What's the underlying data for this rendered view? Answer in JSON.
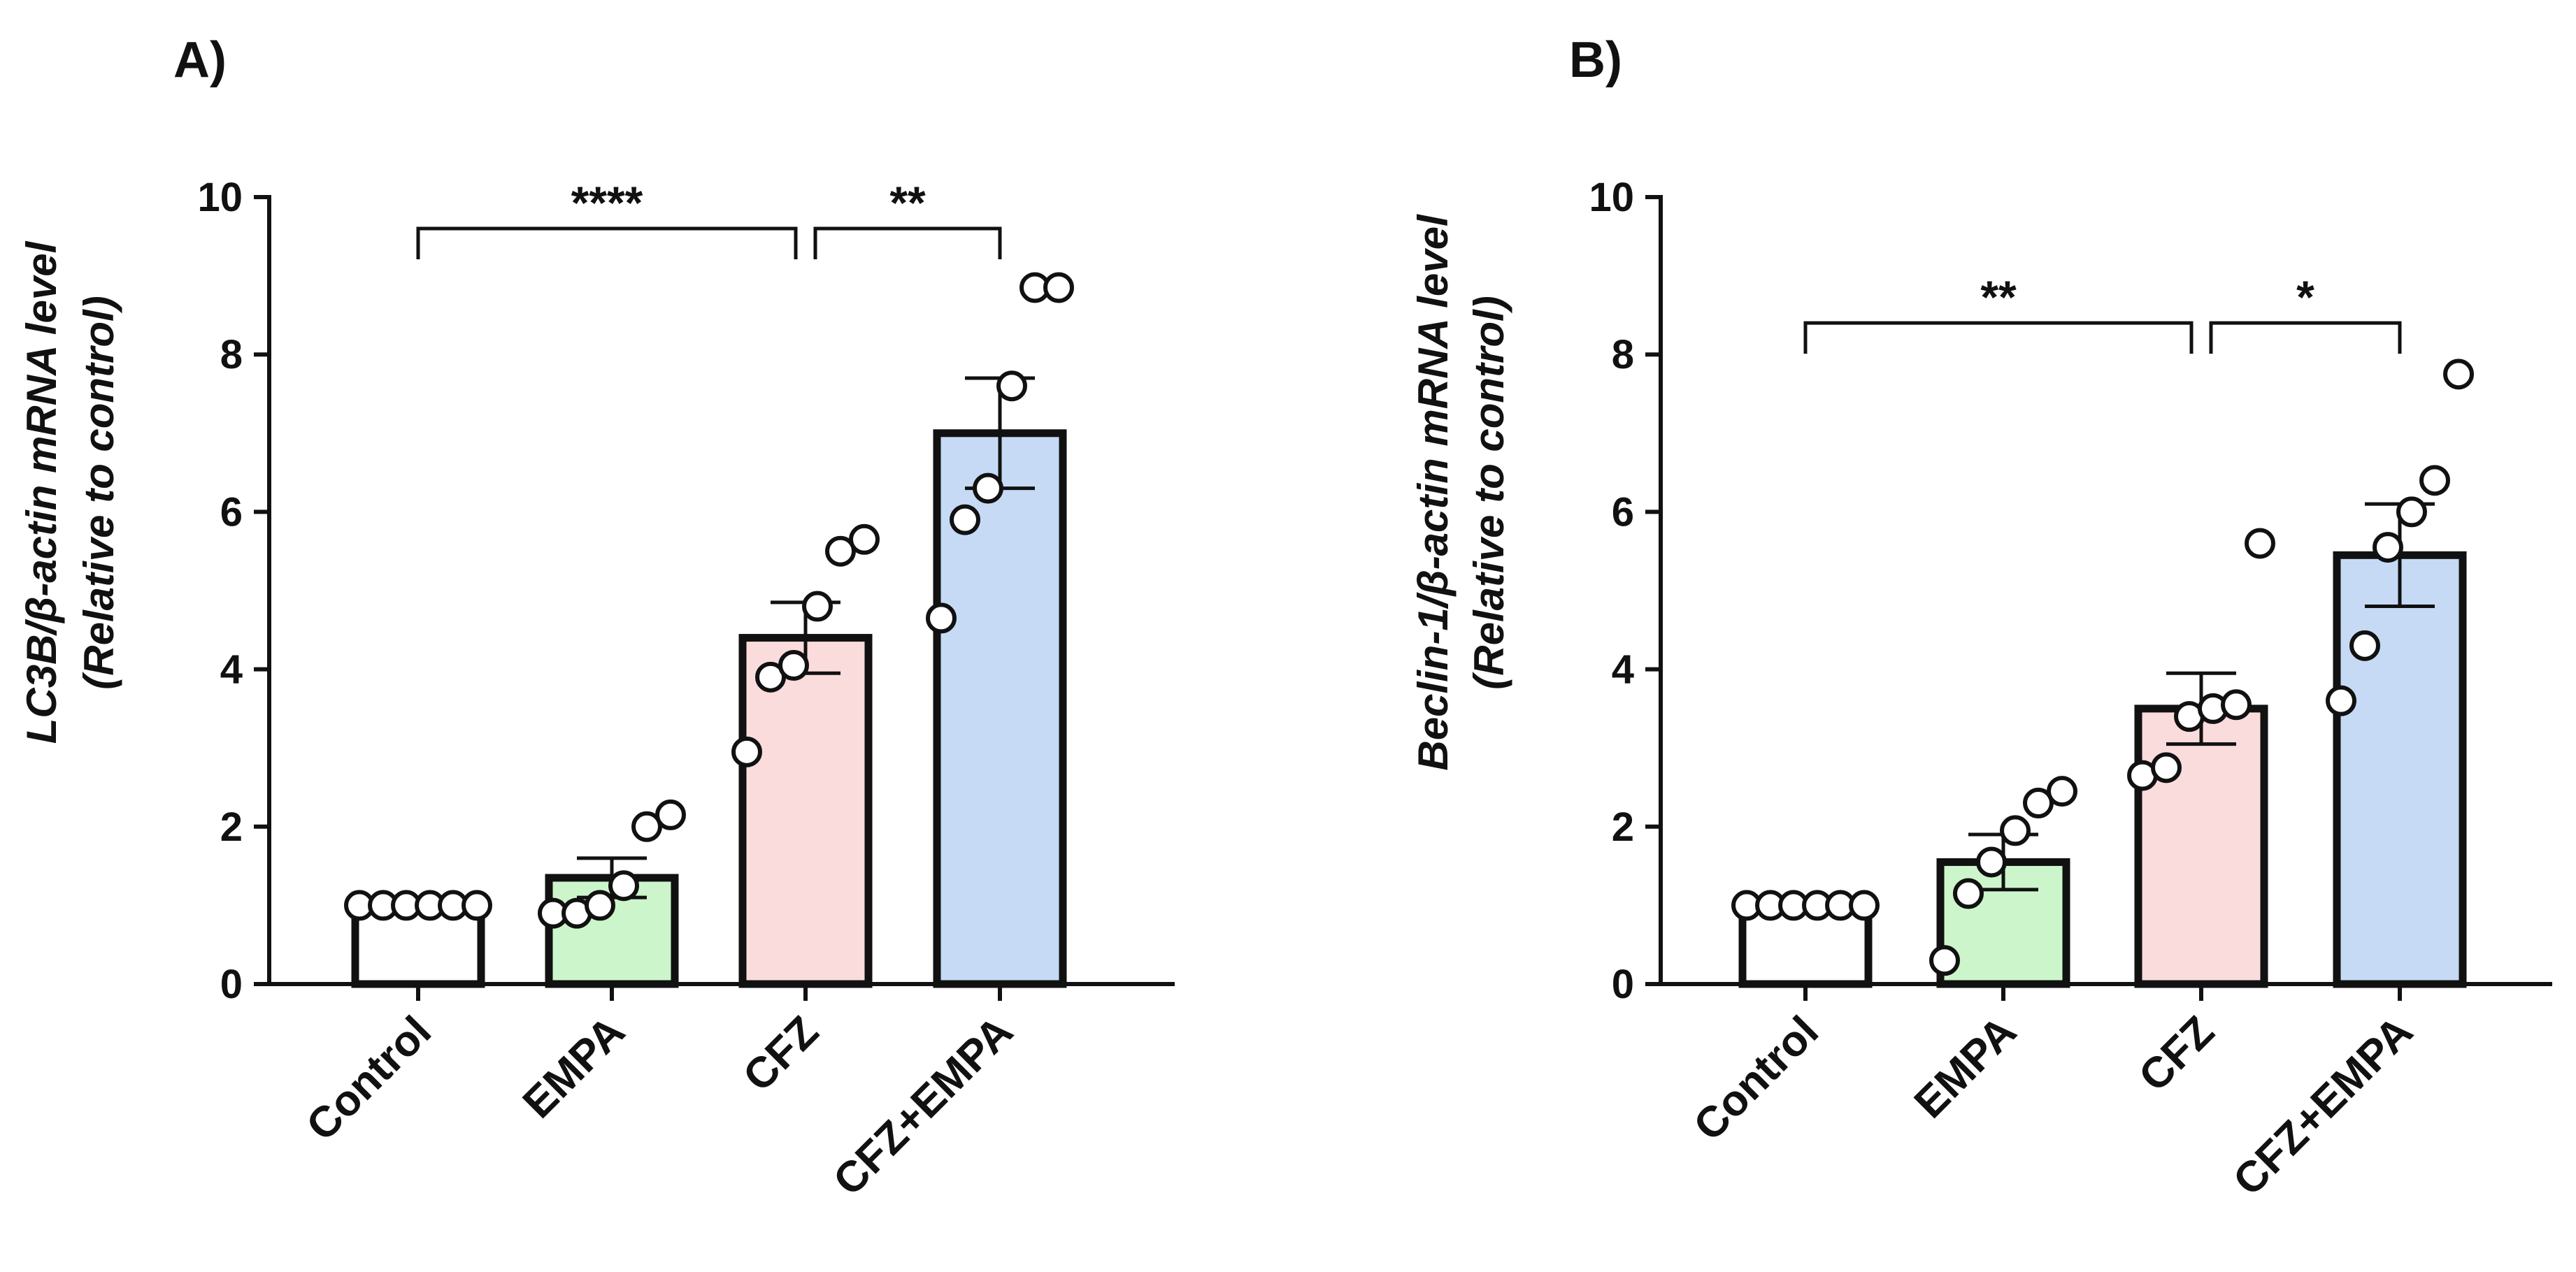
{
  "chart_data": [
    {
      "type": "bar",
      "panel_label": "A)",
      "ylabel_line1": "LC3B/β-actin mRNA level",
      "ylabel_line2": "(Relative to control)",
      "ylim": [
        0,
        10
      ],
      "yticks": [
        "0",
        "2",
        "4",
        "6",
        "8",
        "10"
      ],
      "categories": [
        "Control",
        "EMPA",
        "CFZ",
        "CFZ+EMPA"
      ],
      "colors": [
        "#ffffff",
        "#ccf5cc",
        "#fbdcdc",
        "#c6daf5"
      ],
      "values": [
        1.0,
        1.35,
        4.4,
        7.0
      ],
      "sem": [
        0.0,
        0.25,
        0.45,
        0.7
      ],
      "points": [
        [
          1.0,
          1.0,
          1.0,
          1.0,
          1.0,
          1.0
        ],
        [
          0.9,
          1.0,
          1.25,
          0.9,
          2.0,
          2.15
        ],
        [
          2.95,
          3.9,
          4.05,
          4.8,
          5.5,
          5.65
        ],
        [
          4.65,
          5.9,
          6.3,
          7.6,
          8.85,
          8.85
        ]
      ],
      "significance": [
        {
          "from": 0,
          "to": 2,
          "label": "****",
          "y": 9.6
        },
        {
          "from": 2,
          "to": 3,
          "label": "**",
          "y": 9.6
        }
      ]
    },
    {
      "type": "bar",
      "panel_label": "B)",
      "ylabel_line1": "Beclin-1/β-actin mRNA level",
      "ylabel_line2": "(Relative to control)",
      "ylim": [
        0,
        10
      ],
      "yticks": [
        "0",
        "2",
        "4",
        "6",
        "8",
        "10"
      ],
      "categories": [
        "Control",
        "EMPA",
        "CFZ",
        "CFZ+EMPA"
      ],
      "colors": [
        "#ffffff",
        "#ccf5cc",
        "#fbdcdc",
        "#c6daf5"
      ],
      "values": [
        1.0,
        1.55,
        3.5,
        5.45
      ],
      "sem": [
        0.0,
        0.35,
        0.45,
        0.65
      ],
      "points": [
        [
          1.0,
          1.0,
          1.0,
          1.0,
          1.0,
          1.0
        ],
        [
          0.3,
          1.15,
          1.55,
          1.95,
          2.3,
          2.45
        ],
        [
          2.65,
          2.75,
          3.4,
          3.5,
          3.55,
          5.6
        ],
        [
          3.6,
          4.3,
          5.55,
          6.0,
          6.4,
          7.75
        ]
      ],
      "significance": [
        {
          "from": 0,
          "to": 2,
          "label": "**",
          "y": 8.4
        },
        {
          "from": 2,
          "to": 3,
          "label": "*",
          "y": 8.4
        }
      ]
    }
  ]
}
